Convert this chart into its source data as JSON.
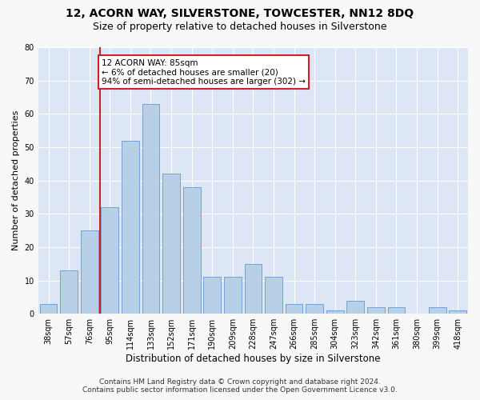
{
  "title": "12, ACORN WAY, SILVERSTONE, TOWCESTER, NN12 8DQ",
  "subtitle": "Size of property relative to detached houses in Silverstone",
  "xlabel": "Distribution of detached houses by size in Silverstone",
  "ylabel": "Number of detached properties",
  "bar_labels": [
    "38sqm",
    "57sqm",
    "76sqm",
    "95sqm",
    "114sqm",
    "133sqm",
    "152sqm",
    "171sqm",
    "190sqm",
    "209sqm",
    "228sqm",
    "247sqm",
    "266sqm",
    "285sqm",
    "304sqm",
    "323sqm",
    "342sqm",
    "361sqm",
    "380sqm",
    "399sqm",
    "418sqm"
  ],
  "bar_values": [
    3,
    13,
    25,
    32,
    52,
    63,
    42,
    38,
    11,
    11,
    15,
    11,
    3,
    3,
    1,
    4,
    2,
    2,
    0,
    2,
    1
  ],
  "bar_color": "#b8cfe8",
  "bar_edgecolor": "#6699cc",
  "background_color": "#dce6f5",
  "grid_color": "#ffffff",
  "vline_x": 2.5,
  "vline_color": "#cc2222",
  "annotation_text": "12 ACORN WAY: 85sqm\n← 6% of detached houses are smaller (20)\n94% of semi-detached houses are larger (302) →",
  "annotation_box_color": "#ffffff",
  "annotation_box_edgecolor": "#cc2222",
  "footer_line1": "Contains HM Land Registry data © Crown copyright and database right 2024.",
  "footer_line2": "Contains public sector information licensed under the Open Government Licence v3.0.",
  "ylim": [
    0,
    80
  ],
  "yticks": [
    0,
    10,
    20,
    30,
    40,
    50,
    60,
    70,
    80
  ],
  "title_fontsize": 10,
  "subtitle_fontsize": 9,
  "xlabel_fontsize": 8.5,
  "ylabel_fontsize": 8,
  "tick_fontsize": 7,
  "annotation_fontsize": 7.5,
  "footer_fontsize": 6.5
}
